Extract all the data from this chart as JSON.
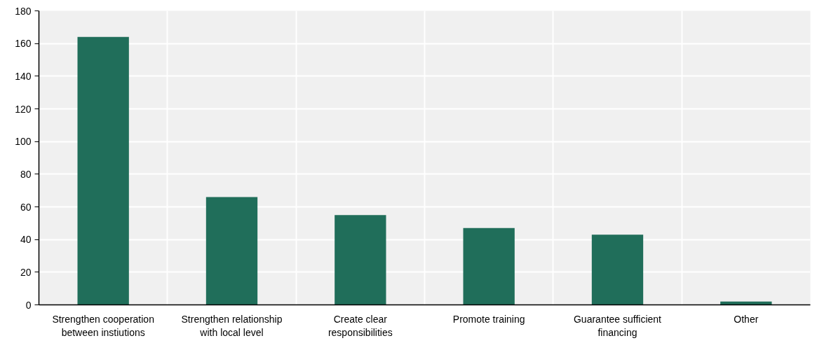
{
  "chart_data": {
    "type": "bar",
    "categories": [
      "Strengthen cooperation between instiutions",
      "Strengthen relationship with local level",
      "Create clear responsibilities",
      "Promote training",
      "Guarantee sufficient financing",
      "Other"
    ],
    "values": [
      164,
      66,
      55,
      47,
      43,
      2
    ],
    "color": "#206e5a",
    "ylim": [
      0,
      180
    ],
    "yticks": [
      0,
      20,
      40,
      60,
      80,
      100,
      120,
      140,
      160,
      180
    ],
    "grid": true
  }
}
